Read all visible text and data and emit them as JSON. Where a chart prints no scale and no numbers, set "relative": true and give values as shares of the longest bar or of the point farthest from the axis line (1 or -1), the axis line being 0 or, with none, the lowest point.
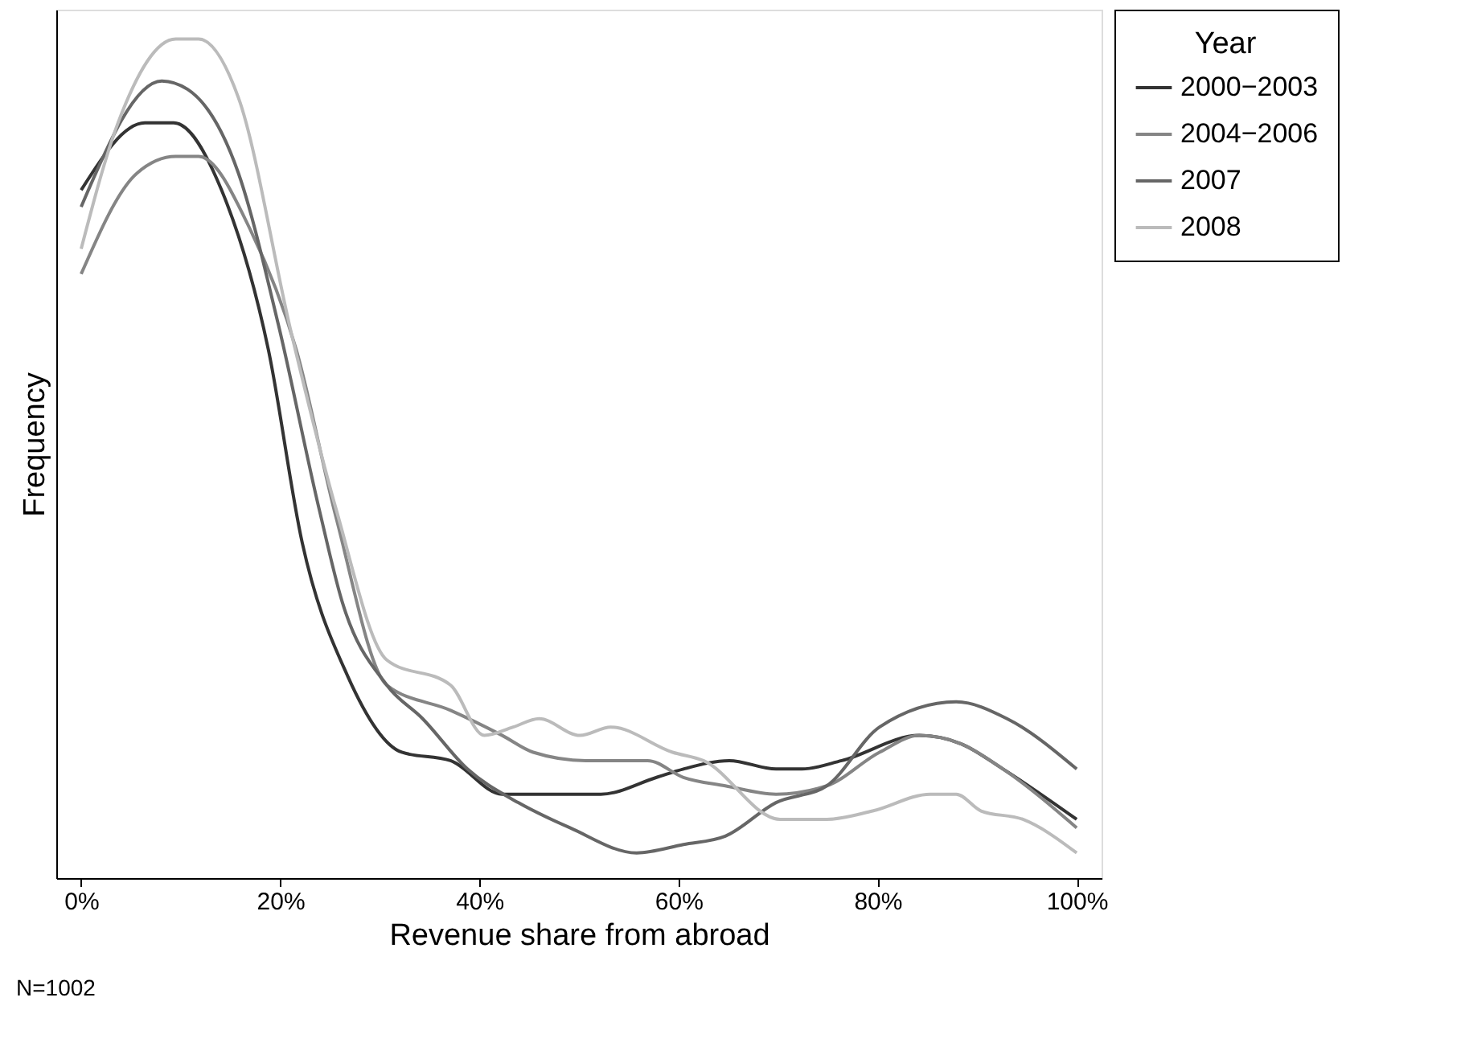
{
  "chart_data": {
    "type": "line",
    "relative": true,
    "xlabel": "Revenue share from abroad",
    "ylabel": "Frequency",
    "legend_title": "Year",
    "legend": "right",
    "grid": false,
    "marker": "none",
    "line_style": "solid",
    "xlim": [
      -2.5,
      102.5
    ],
    "xticks": [
      {
        "value": 0,
        "label": "0%"
      },
      {
        "value": 20,
        "label": "20%"
      },
      {
        "value": 40,
        "label": "40%"
      },
      {
        "value": 60,
        "label": "60%"
      },
      {
        "value": 80,
        "label": "80%"
      },
      {
        "value": 100,
        "label": "100%"
      }
    ],
    "annotations": [
      "N=1002"
    ],
    "series": [
      {
        "name": "2000−2003",
        "color": "#333333",
        "x": [
          0,
          6.4,
          9.3,
          14.1,
          18.8,
          22.2,
          26.8,
          32.2,
          37.1,
          42.3,
          47.8,
          52.2,
          57.8,
          60.5,
          65.1,
          69.8,
          72.4,
          76.4,
          84.2,
          88.4,
          92.6,
          100
        ],
        "values": [
          0.82,
          0.9,
          0.9,
          0.82,
          0.63,
          0.4,
          0.24,
          0.15,
          0.14,
          0.1,
          0.1,
          0.1,
          0.12,
          0.13,
          0.14,
          0.13,
          0.13,
          0.14,
          0.17,
          0.16,
          0.13,
          0.07
        ]
      },
      {
        "name": "2004−2006",
        "color": "#858585",
        "x": [
          0,
          5.6,
          9.5,
          11.8,
          17.1,
          21.6,
          25.6,
          30.7,
          37.1,
          42.3,
          45.4,
          50.7,
          53.8,
          56.9,
          60.5,
          64.7,
          69.8,
          74.9,
          80.2,
          84.2,
          88.4,
          92.6,
          100
        ],
        "values": [
          0.72,
          0.84,
          0.86,
          0.86,
          0.77,
          0.63,
          0.43,
          0.23,
          0.2,
          0.17,
          0.15,
          0.14,
          0.14,
          0.14,
          0.12,
          0.11,
          0.1,
          0.11,
          0.15,
          0.17,
          0.16,
          0.13,
          0.06
        ]
      },
      {
        "name": "2007",
        "color": "#666666",
        "x": [
          0,
          8.1,
          10.7,
          15.8,
          19.8,
          23.9,
          26.2,
          30.7,
          34.3,
          38.8,
          43.9,
          49.1,
          55.8,
          60.5,
          64.7,
          69.8,
          74.9,
          80.2,
          87.9,
          93.0,
          100
        ],
        "values": [
          0.8,
          0.95,
          0.94,
          0.84,
          0.66,
          0.44,
          0.33,
          0.23,
          0.19,
          0.13,
          0.09,
          0.06,
          0.03,
          0.04,
          0.05,
          0.09,
          0.11,
          0.18,
          0.21,
          0.19,
          0.13
        ]
      },
      {
        "name": "2008",
        "color": "#bbbbbb",
        "x": [
          0,
          3.7,
          9.5,
          11.8,
          15.8,
          21.1,
          25.6,
          30.7,
          37.1,
          40.5,
          43.4,
          46.0,
          50.1,
          53.2,
          59.4,
          62.5,
          70.2,
          74.9,
          79.5,
          85.3,
          87.9,
          90.4,
          94.6,
          100
        ],
        "values": [
          0.75,
          0.9,
          1.0,
          1.0,
          0.93,
          0.65,
          0.44,
          0.26,
          0.23,
          0.17,
          0.18,
          0.19,
          0.17,
          0.18,
          0.15,
          0.14,
          0.07,
          0.07,
          0.08,
          0.1,
          0.1,
          0.08,
          0.07,
          0.03
        ]
      }
    ]
  }
}
